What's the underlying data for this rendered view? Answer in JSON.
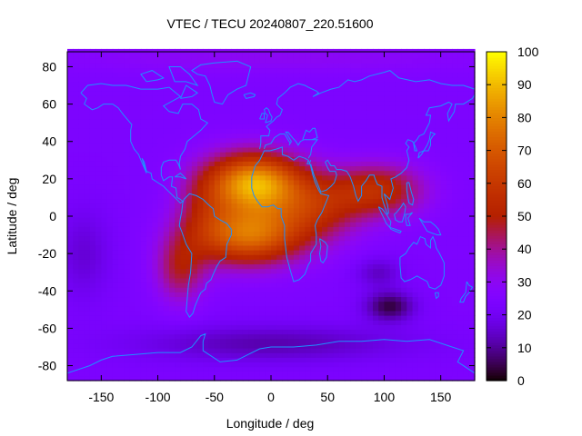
{
  "chart_data": {
    "type": "heatmap",
    "title": "VTEC / TECU 20240807_220.51600",
    "xlabel": "Longitude / deg",
    "ylabel": "Latitude / deg",
    "xlim": [
      -180,
      180
    ],
    "ylim": [
      -88,
      88
    ],
    "x_ticks": [
      -150,
      -100,
      -50,
      0,
      50,
      100,
      150
    ],
    "y_ticks": [
      -80,
      -60,
      -40,
      -20,
      0,
      20,
      40,
      60,
      80
    ],
    "colorbar": {
      "label": "",
      "range": [
        0,
        100
      ],
      "ticks": [
        0,
        10,
        20,
        30,
        40,
        50,
        60,
        70,
        80,
        90,
        100
      ],
      "colormap": "gnuplot-hot (black-purple-red-orange-yellow)"
    },
    "grid_resolution_deg": {
      "lon": 5,
      "lat": 2.5
    },
    "features": [
      {
        "name": "equatorial anomaly peak (daytime)",
        "lon": -15,
        "lat": 18,
        "vtec": 88
      },
      {
        "name": "southern crest",
        "lon": -20,
        "lat": -10,
        "vtec": 80
      },
      {
        "name": "Asian extension",
        "lon": 95,
        "lat": 12,
        "vtec": 62
      },
      {
        "name": "South American extension",
        "lon": -80,
        "lat": -30,
        "vtec": 58
      },
      {
        "name": "Pacific background",
        "lon": -150,
        "lat": 0,
        "vtec": 22
      },
      {
        "name": "Southern Indian Ocean minimum",
        "lon": 105,
        "lat": -48,
        "vtec": 3
      },
      {
        "name": "Polar background",
        "lon": 0,
        "lat": 85,
        "vtec": 28
      }
    ],
    "overlay": "coastlines",
    "colors": {
      "coastline": "#1e90ff",
      "frame": "#000000"
    }
  }
}
